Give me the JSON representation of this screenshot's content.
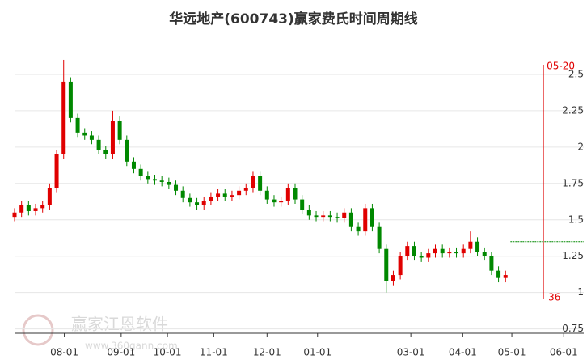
{
  "chart_data": {
    "type": "candlestick",
    "title": "华远地产(600743)赢家费氏时间周期线",
    "x": [
      0,
      1,
      2,
      3,
      4,
      5,
      6,
      7,
      8,
      9,
      10,
      11,
      12,
      13,
      14,
      15,
      16,
      17,
      18,
      19,
      20,
      21,
      22,
      23,
      24,
      25,
      26,
      27,
      28,
      29,
      30,
      31,
      32,
      33,
      34,
      35,
      36,
      37,
      38,
      39,
      40,
      41,
      42,
      43,
      44,
      45,
      46,
      47,
      48,
      49,
      50,
      51,
      52,
      53,
      54,
      55,
      56,
      57,
      58,
      59,
      60,
      61,
      62,
      63,
      64,
      65,
      66,
      67,
      68,
      69,
      70
    ],
    "open": [
      1.52,
      1.55,
      1.6,
      1.56,
      1.58,
      1.6,
      1.72,
      1.95,
      2.45,
      2.2,
      2.1,
      2.08,
      2.05,
      1.98,
      1.95,
      2.18,
      2.05,
      1.9,
      1.85,
      1.8,
      1.78,
      1.77,
      1.76,
      1.74,
      1.7,
      1.65,
      1.62,
      1.6,
      1.63,
      1.66,
      1.68,
      1.66,
      1.67,
      1.7,
      1.72,
      1.8,
      1.7,
      1.64,
      1.62,
      1.63,
      1.72,
      1.64,
      1.57,
      1.53,
      1.52,
      1.53,
      1.52,
      1.51,
      1.55,
      1.45,
      1.42,
      1.58,
      1.45,
      1.3,
      1.08,
      1.12,
      1.25,
      1.32,
      1.25,
      1.24,
      1.27,
      1.3,
      1.27,
      1.28,
      1.27,
      1.3,
      1.35,
      1.28,
      1.25,
      1.15,
      1.1
    ],
    "high": [
      1.58,
      1.63,
      1.63,
      1.61,
      1.63,
      1.75,
      1.98,
      2.6,
      2.48,
      2.23,
      2.13,
      2.11,
      2.08,
      2.01,
      2.25,
      2.21,
      2.08,
      1.93,
      1.88,
      1.83,
      1.81,
      1.8,
      1.79,
      1.77,
      1.73,
      1.68,
      1.65,
      1.66,
      1.69,
      1.71,
      1.71,
      1.7,
      1.73,
      1.75,
      1.83,
      1.83,
      1.73,
      1.67,
      1.66,
      1.75,
      1.75,
      1.67,
      1.6,
      1.56,
      1.56,
      1.56,
      1.55,
      1.58,
      1.58,
      1.48,
      1.61,
      1.61,
      1.48,
      1.33,
      1.15,
      1.28,
      1.35,
      1.35,
      1.28,
      1.3,
      1.33,
      1.33,
      1.31,
      1.31,
      1.33,
      1.42,
      1.38,
      1.31,
      1.28,
      1.18,
      1.15
    ],
    "low": [
      1.49,
      1.52,
      1.53,
      1.53,
      1.55,
      1.57,
      1.69,
      1.92,
      2.17,
      2.07,
      2.05,
      2.02,
      1.95,
      1.92,
      1.92,
      2.02,
      1.87,
      1.82,
      1.77,
      1.75,
      1.74,
      1.73,
      1.71,
      1.67,
      1.62,
      1.59,
      1.57,
      1.57,
      1.6,
      1.63,
      1.63,
      1.63,
      1.64,
      1.67,
      1.69,
      1.67,
      1.61,
      1.59,
      1.59,
      1.6,
      1.61,
      1.54,
      1.5,
      1.49,
      1.49,
      1.49,
      1.48,
      1.48,
      1.42,
      1.39,
      1.39,
      1.42,
      1.27,
      1.0,
      1.05,
      1.09,
      1.22,
      1.22,
      1.21,
      1.21,
      1.24,
      1.24,
      1.24,
      1.24,
      1.24,
      1.27,
      1.25,
      1.22,
      1.12,
      1.07,
      1.07
    ],
    "close": [
      1.55,
      1.6,
      1.56,
      1.58,
      1.6,
      1.72,
      1.95,
      2.45,
      2.2,
      2.1,
      2.08,
      2.05,
      1.98,
      1.95,
      2.18,
      2.05,
      1.9,
      1.85,
      1.8,
      1.78,
      1.77,
      1.76,
      1.74,
      1.7,
      1.65,
      1.62,
      1.6,
      1.63,
      1.66,
      1.68,
      1.66,
      1.67,
      1.7,
      1.72,
      1.8,
      1.7,
      1.64,
      1.62,
      1.63,
      1.72,
      1.64,
      1.57,
      1.53,
      1.52,
      1.53,
      1.52,
      1.51,
      1.55,
      1.45,
      1.42,
      1.58,
      1.45,
      1.3,
      1.08,
      1.12,
      1.25,
      1.32,
      1.25,
      1.24,
      1.27,
      1.3,
      1.27,
      1.28,
      1.27,
      1.3,
      1.35,
      1.28,
      1.25,
      1.15,
      1.1,
      1.12
    ],
    "up_color": "#e00000",
    "down_color": "#008800",
    "xlim": [
      0,
      80
    ],
    "xticks": [
      {
        "value": 7.1,
        "label": "08-01"
      },
      {
        "value": 15.2,
        "label": "09-01"
      },
      {
        "value": 21.8,
        "label": "10-01"
      },
      {
        "value": 28.4,
        "label": "11-01"
      },
      {
        "value": 36.0,
        "label": "12-01"
      },
      {
        "value": 43.2,
        "label": "01-01"
      },
      {
        "value": 56.5,
        "label": "03-01"
      },
      {
        "value": 63.9,
        "label": "04-01"
      },
      {
        "value": 70.9,
        "label": "05-01"
      },
      {
        "value": 78.3,
        "label": "06-01"
      }
    ],
    "ylim": [
      0.72,
      2.8
    ],
    "yticks": [
      0.75,
      1,
      1.25,
      1.5,
      1.75,
      2,
      2.25,
      2.5
    ],
    "grid": true,
    "time_line": {
      "x": 75.4,
      "top_label": "05-20",
      "bottom_label": "36",
      "color": "#e00000"
    },
    "level_line": {
      "value": 1.35,
      "x_start": 70.7,
      "color": "#008800"
    },
    "watermark": {
      "name": "赢家江恩软件",
      "url": "www.360gann.com"
    }
  }
}
